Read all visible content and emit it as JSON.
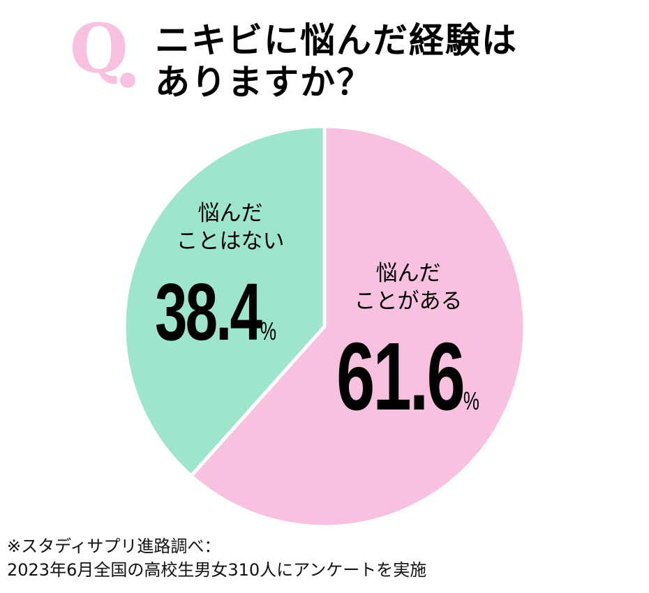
{
  "header": {
    "q_mark": "Q",
    "title_line1": "ニキビに悩んだ経験は",
    "title_line2": "ありますか？"
  },
  "chart_data": {
    "type": "pie",
    "title": "ニキビに悩んだ経験はありますか？",
    "slices": [
      {
        "label_line1": "悩んだ",
        "label_line2": "ことがある",
        "value": 61.6,
        "value_text": "61.6",
        "unit": "%",
        "color": "#f8c1e0"
      },
      {
        "label_line1": "悩んだ",
        "label_line2": "ことはない",
        "value": 38.4,
        "value_text": "38.4",
        "unit": "%",
        "color": "#9ee5cf"
      }
    ],
    "start": "top",
    "direction": "clockwise"
  },
  "footnote": {
    "line1": "※スタディサプリ進路調べ：",
    "line2": "2023年6月全国の高校生男女310人にアンケートを実施"
  }
}
